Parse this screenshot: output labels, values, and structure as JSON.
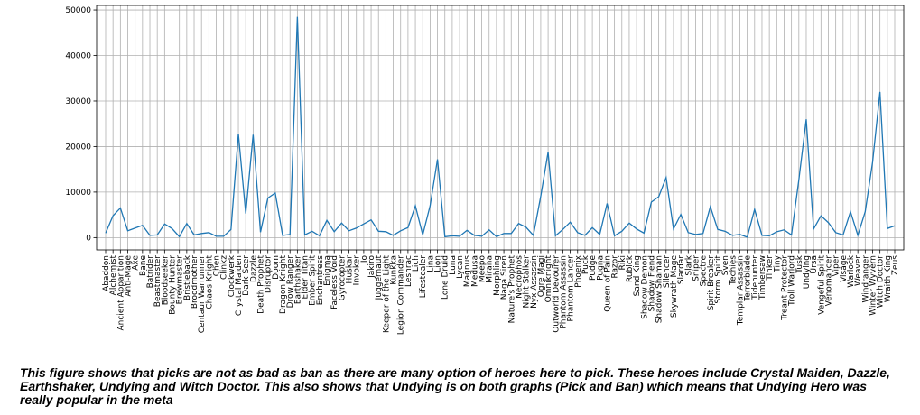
{
  "chart_data": {
    "type": "line",
    "title": "",
    "xlabel": "",
    "ylabel": "",
    "ylim": [
      -2700,
      51000
    ],
    "yticks": [
      0,
      10000,
      20000,
      30000,
      40000,
      50000
    ],
    "grid": true,
    "line_color": "#1f77b4",
    "categories": [
      "Abaddon",
      "Alchemist",
      "Ancient Apparition",
      "Anti-Mage",
      "Axe",
      "Bane",
      "Batrider",
      "Beastmaster",
      "Bloodseeker",
      "Bounty Hunter",
      "Brewmaster",
      "Bristleback",
      "Broodmother",
      "Centaur Warrunner",
      "Chaos Knight",
      "Chen",
      "Clinkz",
      "Clockwerk",
      "Crystal Maiden",
      "Dark Seer",
      "Dazzle",
      "Death Prophet",
      "Disruptor",
      "Doom",
      "Dragon Knight",
      "Drow Ranger",
      "Earthshaker",
      "Elder Titan",
      "Ember Spirit",
      "Enchantress",
      "Enigma",
      "Faceless Void",
      "Gyrocopter",
      "Huskar",
      "Invoker",
      "Io",
      "Jakiro",
      "Juggernaut",
      "Keeper of the Light",
      "Kunkka",
      "Legion Commander",
      "Leshrac",
      "Lich",
      "Lifestealer",
      "Lina",
      "Lion",
      "Lone Druid",
      "Luna",
      "Lycan",
      "Magnus",
      "Medusa",
      "Meepo",
      "Mirana",
      "Morphling",
      "Naga Siren",
      "Nature's Prophet",
      "Necrophos",
      "Night Stalker",
      "Nyx Assassin",
      "Ogre Magi",
      "Omniknight",
      "Outworld Devourer",
      "Phantom Assassin",
      "Phantom Lancer",
      "Phoenix",
      "Puck",
      "Pudge",
      "Pugna",
      "Queen of Pain",
      "Razor",
      "Riki",
      "Rubick",
      "Sand King",
      "Shadow Demon",
      "Shadow Fiend",
      "Shadow Shaman",
      "Silencer",
      "Skywrath Mage",
      "Slardar",
      "Slark",
      "Sniper",
      "Spectre",
      "Spirit Breaker",
      "Storm Spirit",
      "Sven",
      "Techies",
      "Templar Assassin",
      "Terrorblade",
      "Tidehunter",
      "Timbersaw",
      "Tinker",
      "Tiny",
      "Treant Protector",
      "Troll Warlord",
      "Tusk",
      "Undying",
      "Ursa",
      "Vengeful Spirit",
      "Venomancer",
      "Viper",
      "Visage",
      "Warlock",
      "Weaver",
      "Windranger",
      "Winter Wyvern",
      "Witch Doctor",
      "Wraith King",
      "Zeus"
    ],
    "values": [
      1000,
      4800,
      6500,
      1500,
      2100,
      2700,
      500,
      600,
      3000,
      2000,
      200,
      3100,
      600,
      900,
      1100,
      300,
      300,
      1800,
      22800,
      5300,
      22600,
      1200,
      8700,
      9800,
      500,
      700,
      48500,
      600,
      1400,
      400,
      3800,
      1300,
      3200,
      1500,
      2100,
      3000,
      3900,
      1400,
      1300,
      500,
      1500,
      2200,
      7000,
      600,
      7000,
      17200,
      200,
      400,
      300,
      1600,
      500,
      300,
      1700,
      200,
      900,
      900,
      3100,
      2300,
      500,
      9100,
      18800,
      400,
      1800,
      3400,
      1100,
      500,
      2200,
      700,
      7500,
      400,
      1400,
      3200,
      1900,
      1000,
      7800,
      9000,
      13200,
      1900,
      5100,
      1100,
      700,
      900,
      6800,
      1800,
      1400,
      500,
      700,
      100,
      6200,
      500,
      400,
      1300,
      1700,
      600,
      12700,
      26000,
      1900,
      4800,
      3300,
      1100,
      600,
      5700,
      500,
      5700,
      16600,
      32000,
      2000,
      2600
    ]
  },
  "caption": "This figure shows that picks are not as bad as ban as there are many option of heroes here to pick. These heroes include Crystal Maiden, Dazzle, Earthshaker, Undying and Witch Doctor. This also shows that Undying is on both graphs (Pick and Ban) which means that Undying Hero was really popular in the meta"
}
